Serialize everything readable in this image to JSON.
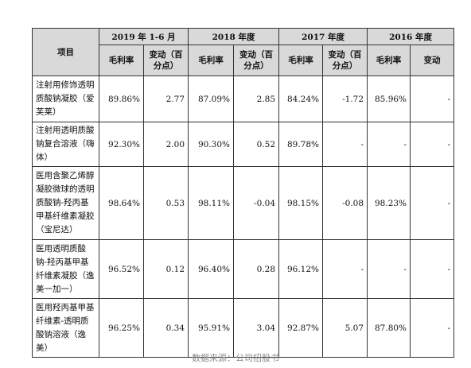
{
  "table": {
    "item_header": "项目",
    "periods": [
      "2019 年 1-6 月",
      "2018 年度",
      "2017 年度",
      "2016 年度"
    ],
    "sub_headers": [
      [
        "毛利率",
        "变动（百分点）"
      ],
      [
        "毛利率",
        "变动（百分点）"
      ],
      [
        "毛利率",
        "变动（百分点）"
      ],
      [
        "毛利率",
        "变动"
      ]
    ],
    "rows": [
      {
        "name": "注射用修饰透明质酸钠凝胶（爱芙莱）",
        "values": [
          "89.86%",
          "2.77",
          "87.09%",
          "2.85",
          "84.24%",
          "-1.72",
          "85.96%",
          "-"
        ]
      },
      {
        "name": "注射用透明质酸钠复合溶液（嗨体）",
        "values": [
          "92.30%",
          "2.00",
          "90.30%",
          "0.52",
          "89.78%",
          "-",
          "-",
          "-"
        ]
      },
      {
        "name": "医用含聚乙烯醇凝胶微球的透明质酸钠-羟丙基甲基纤维素凝胶（宝尼达）",
        "values": [
          "98.64%",
          "0.53",
          "98.11%",
          "-0.04",
          "98.15%",
          "-0.08",
          "98.23%",
          "-"
        ]
      },
      {
        "name": "医用透明质酸钠-羟丙基甲基纤维素凝胶（逸美一加一）",
        "values": [
          "96.52%",
          "0.12",
          "96.40%",
          "0.28",
          "96.12%",
          "-",
          "-",
          "-"
        ]
      },
      {
        "name": "医用羟丙基甲基纤维素-透明质酸钠溶液（逸美）",
        "values": [
          "96.25%",
          "0.34",
          "95.91%",
          "3.04",
          "92.87%",
          "5.07",
          "87.80%",
          "-"
        ]
      }
    ]
  },
  "source_note": "数据来源：公司招股书"
}
